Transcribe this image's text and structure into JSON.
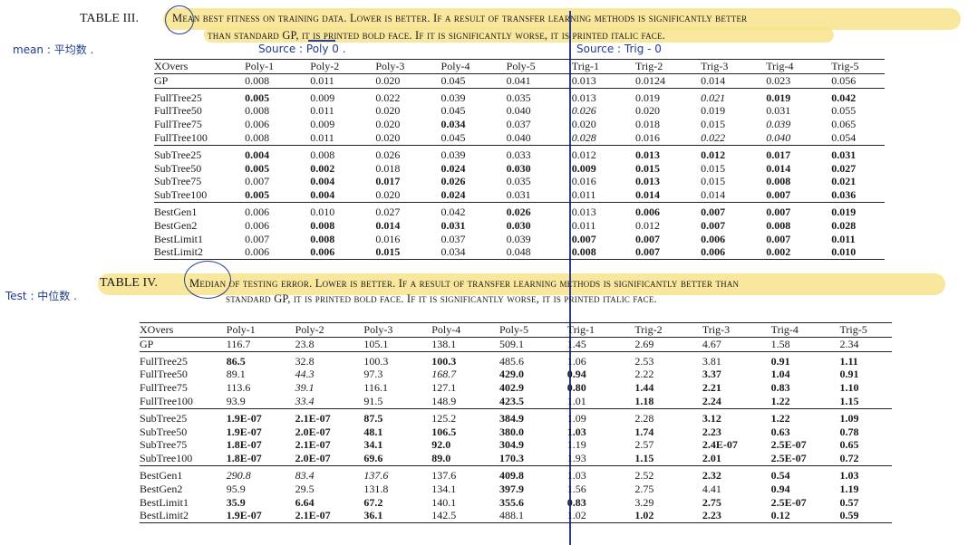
{
  "tables": [
    {
      "label": "TABLE III.",
      "caption_line1": "Mean best fitness on training data. Lower is better. If a result of transfer learning methods is significantly better",
      "caption_line2": "than standard GP, it is printed bold face. If it is significantly worse, it is printed italic face.",
      "columns": [
        "XOvers",
        "Poly-1",
        "Poly-2",
        "Poly-3",
        "Poly-4",
        "Poly-5",
        "Trig-1",
        "Trig-2",
        "Trig-3",
        "Trig-4",
        "Trig-5"
      ],
      "groups": [
        [
          [
            "GP",
            "0.008",
            "0.011",
            "0.020",
            "0.045",
            "0.041",
            "0.013",
            "0.0124",
            "0.014",
            "0.023",
            "0.056"
          ]
        ],
        [
          [
            "FullTree25",
            "**0.005",
            "0.009",
            "0.022",
            "0.039",
            "0.035",
            "0.013",
            "0.019",
            "*0.021",
            "**0.019",
            "**0.042"
          ],
          [
            "FullTree50",
            "0.008",
            "0.011",
            "0.020",
            "0.045",
            "0.040",
            "*0.026",
            "0.020",
            "0.019",
            "0.031",
            "0.055"
          ],
          [
            "FullTree75",
            "0.006",
            "0.009",
            "0.020",
            "**0.034",
            "0.037",
            "0.020",
            "0.018",
            "0.015",
            "*0.039",
            "0.065"
          ],
          [
            "FullTree100",
            "0.008",
            "0.011",
            "0.020",
            "0.045",
            "0.040",
            "*0.028",
            "0.016",
            "*0.022",
            "*0.040",
            "0.054"
          ]
        ],
        [
          [
            "SubTree25",
            "**0.004",
            "0.008",
            "0.026",
            "0.039",
            "0.033",
            "0.012",
            "**0.013",
            "**0.012",
            "**0.017",
            "**0.031"
          ],
          [
            "SubTree50",
            "**0.005",
            "**0.002",
            "0.018",
            "**0.024",
            "**0.030",
            "**0.009",
            "**0.015",
            "0.015",
            "**0.014",
            "**0.027"
          ],
          [
            "SubTree75",
            "0.007",
            "**0.004",
            "**0.017",
            "**0.026",
            "0.035",
            "0.016",
            "**0.013",
            "0.015",
            "**0.008",
            "**0.021"
          ],
          [
            "SubTree100",
            "**0.005",
            "**0.004",
            "0.020",
            "**0.024",
            "0.031",
            "0.011",
            "**0.014",
            "0.014",
            "**0.007",
            "**0.036"
          ]
        ],
        [
          [
            "BestGen1",
            "0.006",
            "0.010",
            "0.027",
            "0.042",
            "**0.026",
            "0.013",
            "**0.006",
            "**0.007",
            "**0.007",
            "**0.019"
          ],
          [
            "BestGen2",
            "0.006",
            "**0.008",
            "**0.014",
            "**0.031",
            "**0.030",
            "0.011",
            "0.012",
            "**0.007",
            "**0.008",
            "**0.028"
          ],
          [
            "BestLimit1",
            "0.007",
            "**0.008",
            "0.016",
            "0.037",
            "0.039",
            "**0.007",
            "**0.007",
            "**0.006",
            "**0.007",
            "**0.011"
          ],
          [
            "BestLimit2",
            "0.006",
            "**0.006",
            "**0.015",
            "0.034",
            "0.048",
            "**0.008",
            "**0.007",
            "**0.006",
            "**0.002",
            "**0.010"
          ]
        ]
      ]
    },
    {
      "label": "TABLE IV.",
      "caption_line1": "Median of testing error. Lower is better. If a result of transfer learning methods is significantly better than",
      "caption_line2": "standard GP, it is printed bold face. If it is significantly worse, it is printed italic face.",
      "columns": [
        "XOvers",
        "Poly-1",
        "Poly-2",
        "Poly-3",
        "Poly-4",
        "Poly-5",
        "Trig-1",
        "Trig-2",
        "Trig-3",
        "Trig-4",
        "Trig-5"
      ],
      "groups": [
        [
          [
            "GP",
            "116.7",
            "23.8",
            "105.1",
            "138.1",
            "509.1",
            "1.45",
            "2.69",
            "4.67",
            "1.58",
            "2.34"
          ]
        ],
        [
          [
            "FullTree25",
            "**86.5",
            "32.8",
            "100.3",
            "**100.3",
            "485.6",
            "1.06",
            "2.53",
            "3.81",
            "**0.91",
            "**1.11"
          ],
          [
            "FullTree50",
            "89.1",
            "*44.3",
            "97.3",
            "*168.7",
            "**429.0",
            "**0.94",
            "2.22",
            "**3.37",
            "**1.04",
            "**0.91"
          ],
          [
            "FullTree75",
            "113.6",
            "*39.1",
            "116.1",
            "127.1",
            "**402.9",
            "**0.80",
            "**1.44",
            "**2.21",
            "**0.83",
            "**1.10"
          ],
          [
            "FullTree100",
            "93.9",
            "*33.4",
            "91.5",
            "148.9",
            "**423.5",
            "1.01",
            "**1.18",
            "**2.24",
            "**1.22",
            "**1.15"
          ]
        ],
        [
          [
            "SubTree25",
            "**1.9E-07",
            "**2.1E-07",
            "**87.5",
            "125.2",
            "**384.9",
            "1.09",
            "2.28",
            "**3.12",
            "**1.22",
            "**1.09"
          ],
          [
            "SubTree50",
            "**1.9E-07",
            "**2.0E-07",
            "**48.1",
            "**106.5",
            "**380.0",
            "**1.03",
            "**1.74",
            "**2.23",
            "**0.63",
            "**0.78"
          ],
          [
            "SubTree75",
            "**1.8E-07",
            "**2.1E-07",
            "**34.1",
            "**92.0",
            "**304.9",
            "1.19",
            "2.57",
            "**2.4E-07",
            "**2.5E-07",
            "**0.65"
          ],
          [
            "SubTree100",
            "**1.8E-07",
            "**2.0E-07",
            "**69.6",
            "**89.0",
            "**170.3",
            "1.93",
            "**1.15",
            "**2.01",
            "**2.5E-07",
            "**0.72"
          ]
        ],
        [
          [
            "BestGen1",
            "*290.8",
            "*83.4",
            "*137.6",
            "137.6",
            "**409.8",
            "1.03",
            "2.52",
            "**2.32",
            "**0.54",
            "**1.03"
          ],
          [
            "BestGen2",
            "95.9",
            "29.5",
            "131.8",
            "134.1",
            "**397.9",
            "1.56",
            "2.75",
            "4.41",
            "**0.94",
            "**1.19"
          ],
          [
            "BestLimit1",
            "**35.9",
            "**6.64",
            "**67.2",
            "140.1",
            "**355.6",
            "**0.83",
            "3.29",
            "**2.75",
            "**2.5E-07",
            "**0.57"
          ],
          [
            "BestLimit2",
            "**1.9E-07",
            "**2.1E-07",
            "**36.1",
            "142.5",
            "488.1",
            "1.02",
            "**1.02",
            "**2.23",
            "**0.12",
            "**0.59"
          ]
        ]
      ]
    }
  ],
  "annotations": {
    "mean_note": "mean : 平均数 .",
    "test_note": "Test : 中位数 .",
    "source_poly": "Source : Poly 0 .",
    "source_trig": "Source : Trig - 0"
  },
  "colors": {
    "highlight": "#f7e38c",
    "ink": "#2a3f8f"
  }
}
